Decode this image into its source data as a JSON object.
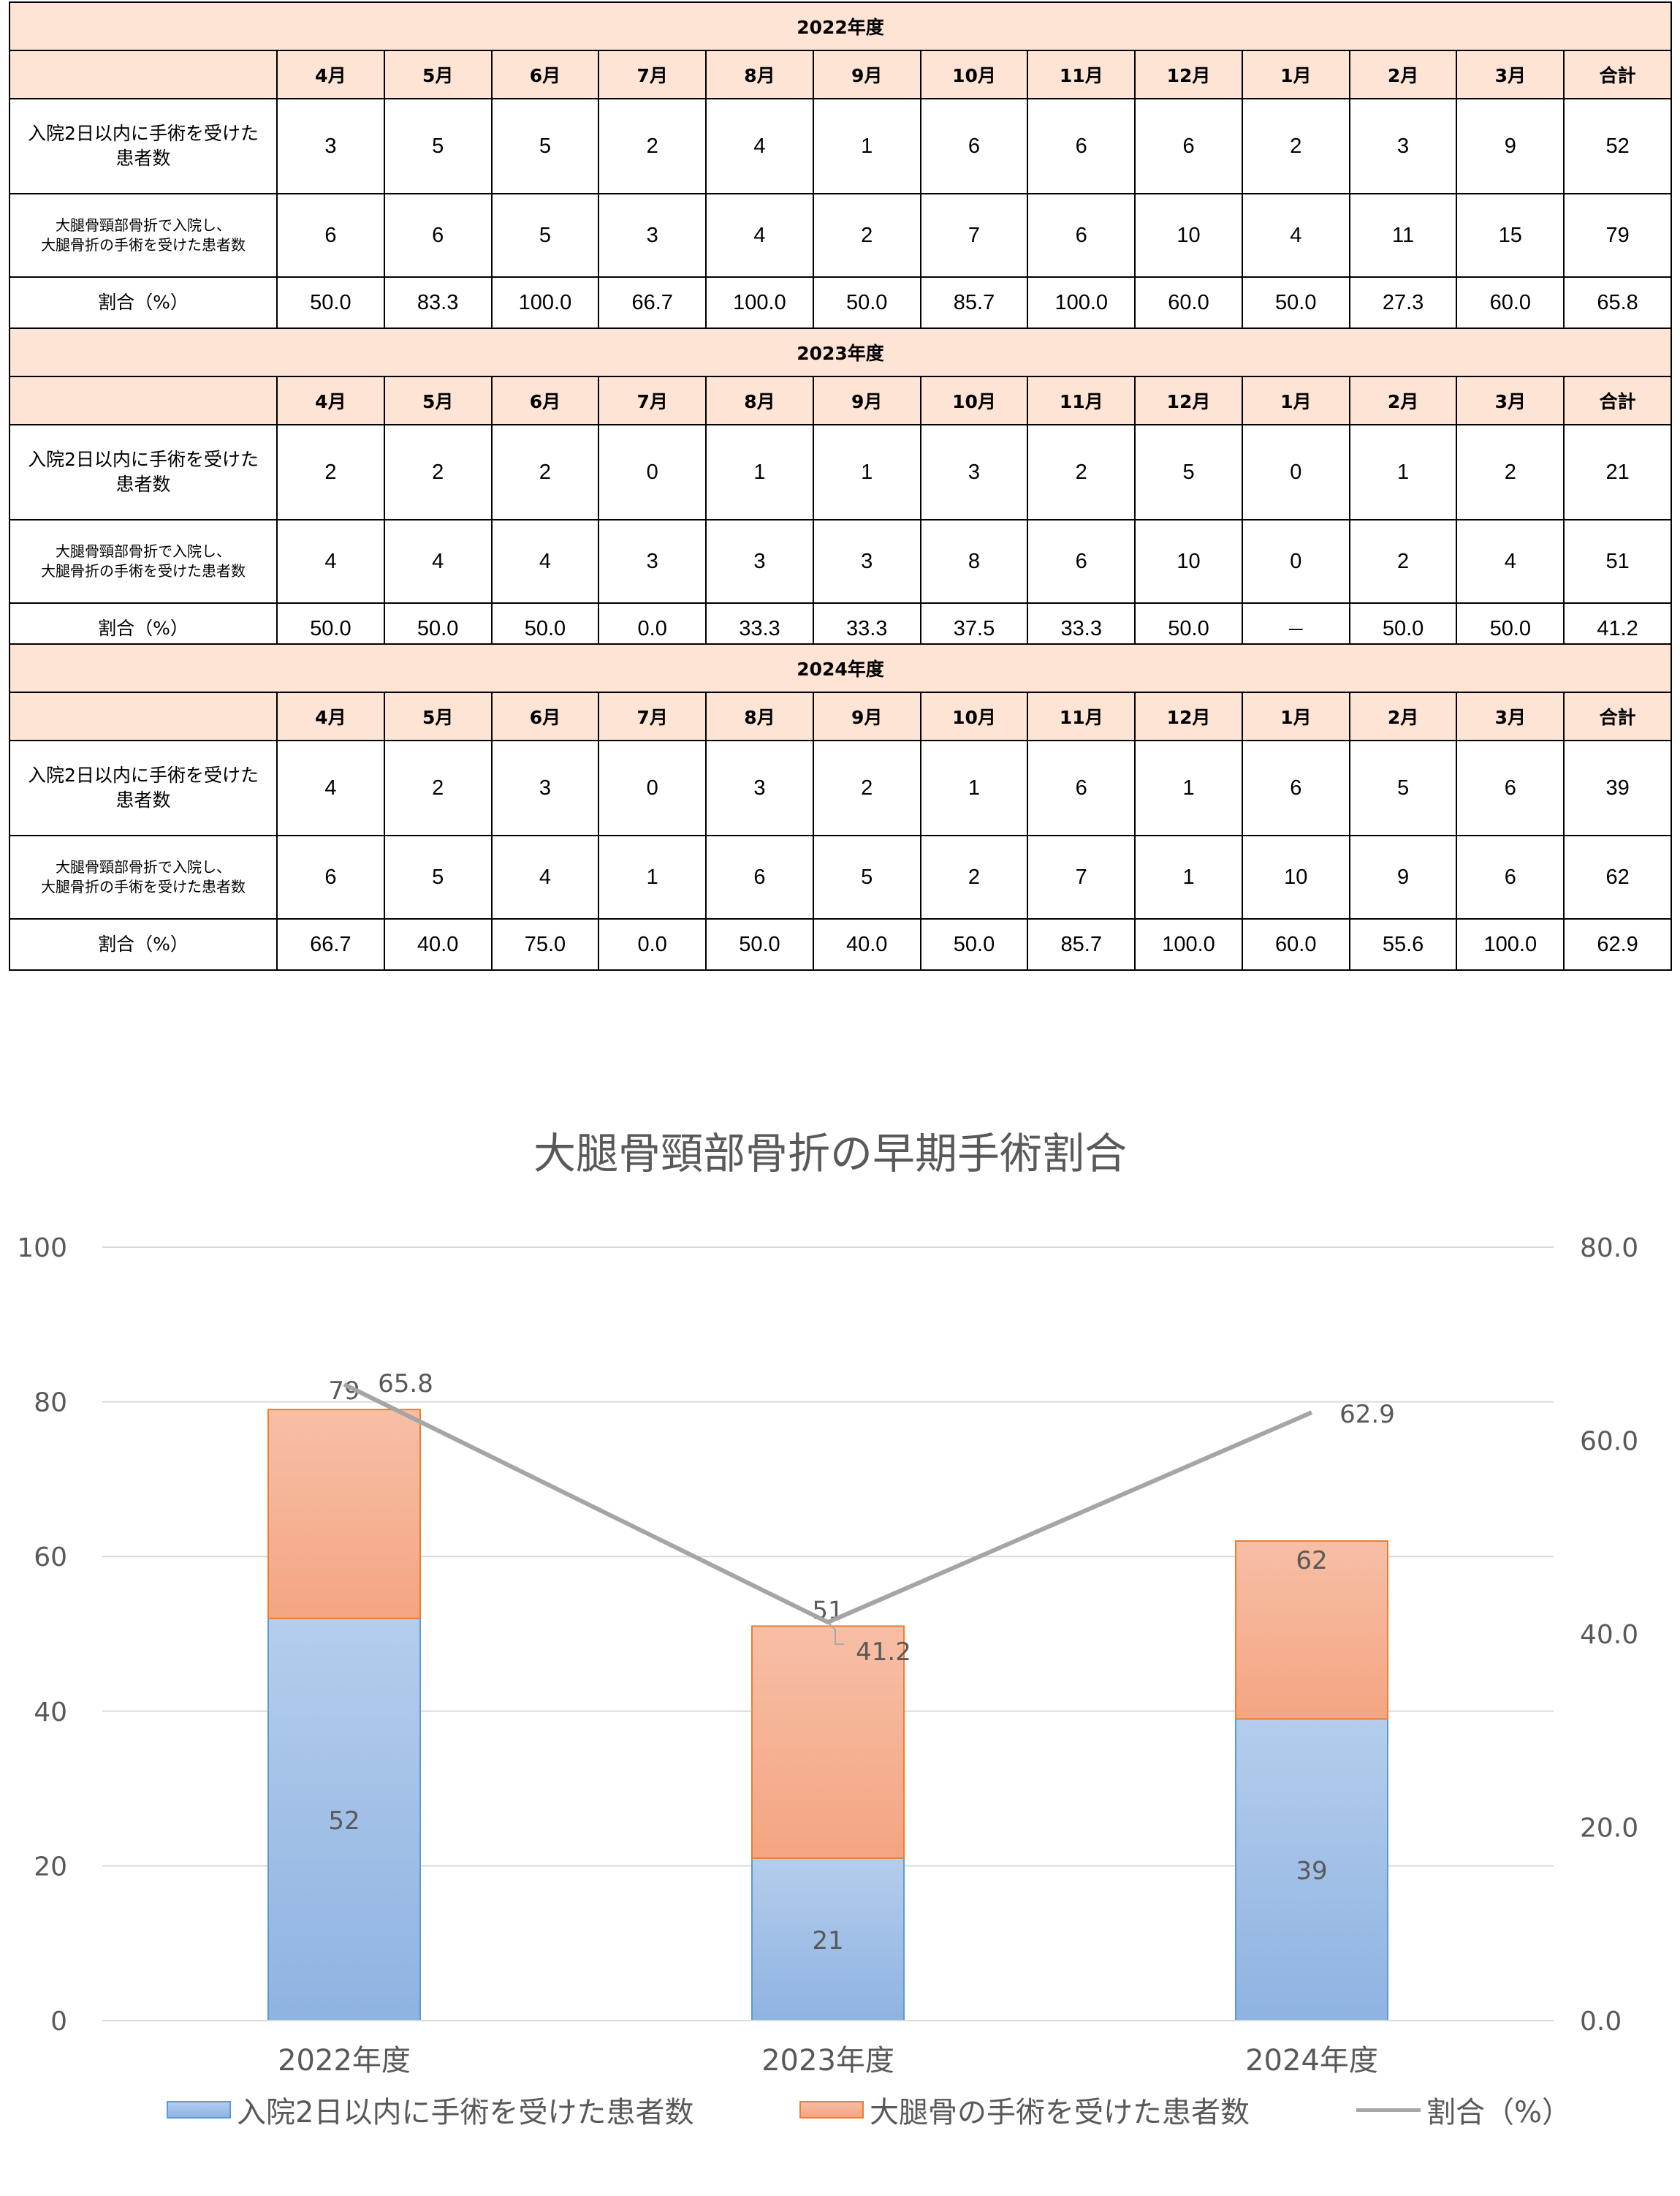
{
  "years": [
    {
      "title": "2022年度",
      "months": [
        "4月",
        "5月",
        "6月",
        "7月",
        "8月",
        "9月",
        "10月",
        "11月",
        "12月",
        "1月",
        "2月",
        "3月",
        "合計"
      ],
      "rows": [
        {
          "label": [
            "入院2日以内に手術を受けた",
            "患者数"
          ],
          "small": false,
          "values": [
            "3",
            "5",
            "5",
            "2",
            "4",
            "1",
            "6",
            "6",
            "6",
            "2",
            "3",
            "9",
            "52"
          ]
        },
        {
          "label": [
            "大腿骨頸部骨折で入院し、",
            "大腿骨折の手術を受けた患者数"
          ],
          "small": true,
          "values": [
            "6",
            "6",
            "5",
            "3",
            "4",
            "2",
            "7",
            "6",
            "10",
            "4",
            "11",
            "15",
            "79"
          ]
        },
        {
          "label": [
            "割合（%）"
          ],
          "small": false,
          "values": [
            "50.0",
            "83.3",
            "100.0",
            "66.7",
            "100.0",
            "50.0",
            "85.7",
            "100.0",
            "60.0",
            "50.0",
            "27.3",
            "60.0",
            "65.8"
          ]
        }
      ]
    },
    {
      "title": "2023年度",
      "months": [
        "4月",
        "5月",
        "6月",
        "7月",
        "8月",
        "9月",
        "10月",
        "11月",
        "12月",
        "1月",
        "2月",
        "3月",
        "合計"
      ],
      "rows": [
        {
          "label": [
            "入院2日以内に手術を受けた",
            "患者数"
          ],
          "small": false,
          "values": [
            "2",
            "2",
            "2",
            "0",
            "1",
            "1",
            "3",
            "2",
            "5",
            "0",
            "1",
            "2",
            "21"
          ]
        },
        {
          "label": [
            "大腿骨頸部骨折で入院し、",
            "大腿骨折の手術を受けた患者数"
          ],
          "small": true,
          "values": [
            "4",
            "4",
            "4",
            "3",
            "3",
            "3",
            "8",
            "6",
            "10",
            "0",
            "2",
            "4",
            "51"
          ]
        },
        {
          "label": [
            "割合（%）"
          ],
          "small": false,
          "values": [
            "50.0",
            "50.0",
            "50.0",
            "0.0",
            "33.3",
            "33.3",
            "37.5",
            "33.3",
            "50.0",
            "－",
            "50.0",
            "50.0",
            "41.2"
          ]
        }
      ]
    },
    {
      "title": "2024年度",
      "months": [
        "4月",
        "5月",
        "6月",
        "7月",
        "8月",
        "9月",
        "10月",
        "11月",
        "12月",
        "1月",
        "2月",
        "3月",
        "合計"
      ],
      "rows": [
        {
          "label": [
            "入院2日以内に手術を受けた",
            "患者数"
          ],
          "small": false,
          "values": [
            "4",
            "2",
            "3",
            "0",
            "3",
            "2",
            "1",
            "6",
            "1",
            "6",
            "5",
            "6",
            "39"
          ]
        },
        {
          "label": [
            "大腿骨頸部骨折で入院し、",
            "大腿骨折の手術を受けた患者数"
          ],
          "small": true,
          "values": [
            "6",
            "5",
            "4",
            "1",
            "6",
            "5",
            "2",
            "7",
            "1",
            "10",
            "9",
            "6",
            "62"
          ]
        },
        {
          "label": [
            "割合（%）"
          ],
          "small": false,
          "values": [
            "66.7",
            "40.0",
            "75.0",
            "0.0",
            "50.0",
            "40.0",
            "50.0",
            "85.7",
            "100.0",
            "60.0",
            "55.6",
            "100.0",
            "62.9"
          ]
        }
      ]
    }
  ],
  "chart_data": {
    "type": "bar",
    "stacked": true,
    "title": "大腿骨頸部骨折の早期手術割合",
    "categories": [
      "2022年度",
      "2023年度",
      "2024年度"
    ],
    "series": [
      {
        "name": "入院2日以内に手術を受けた患者数",
        "type": "bar",
        "axis": "left",
        "values": [
          52,
          21,
          39
        ],
        "labels": [
          "52",
          "21",
          "39"
        ]
      },
      {
        "name": "大腿骨の手術を受けた患者数",
        "type": "bar",
        "axis": "left",
        "values": [
          27,
          30,
          23
        ],
        "labels": [
          "79",
          "51",
          "62"
        ]
      },
      {
        "name": "割合（%）",
        "type": "line",
        "axis": "right",
        "values": [
          65.8,
          41.2,
          62.9
        ],
        "labels": [
          "65.8",
          "41.2",
          "62.9"
        ]
      }
    ],
    "ylim": [
      0,
      100
    ],
    "yticks": [
      "0",
      "20",
      "40",
      "60",
      "80",
      "100"
    ],
    "y2lim": [
      0,
      80
    ],
    "y2ticks": [
      "0.0",
      "20.0",
      "40.0",
      "60.0",
      "80.0"
    ],
    "grid": true,
    "legend": "bottom",
    "colors": {
      "bar1": "#8fb3e2",
      "bar2": "#f4a582",
      "bar1_border": "#5b9bd5",
      "bar2_border": "#ed7d31",
      "line": "#a5a5a5",
      "text": "#595959"
    }
  }
}
